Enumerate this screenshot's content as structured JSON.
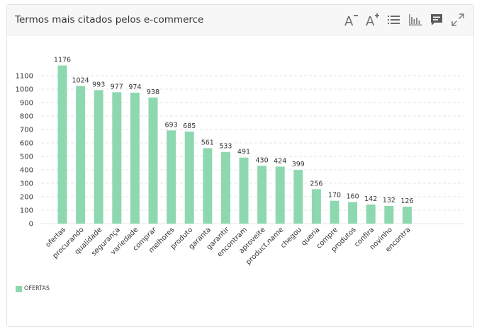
{
  "panel": {
    "title": "Termos mais citados pelos e-commerce"
  },
  "toolbar": {
    "icons": [
      "font-decrease-icon",
      "font-increase-icon",
      "list-icon",
      "bar-chart-icon",
      "comment-icon",
      "expand-icon"
    ]
  },
  "colors": {
    "bar": "#8ed8b0",
    "grid": "#e6e6e6",
    "text": "#333333"
  },
  "legend": {
    "label": "OFERTAS"
  },
  "chart_data": {
    "type": "bar",
    "title": "Termos mais citados pelos e-commerce",
    "xlabel": "",
    "ylabel": "",
    "ylim": [
      0,
      1200
    ],
    "yticks": [
      0,
      100,
      200,
      300,
      400,
      500,
      600,
      700,
      800,
      900,
      1000,
      1100
    ],
    "grid": true,
    "legend_position": "bottom-left",
    "categories": [
      "ofertas",
      "procurando",
      "qualidade",
      "segurança",
      "variedade",
      "comprar",
      "melhores",
      "produto",
      "garanta",
      "garantir",
      "encontram",
      "aproveite",
      "product.name",
      "chegou",
      "queria",
      "compre",
      "produtos",
      "confira",
      "novinho",
      "encontra"
    ],
    "series": [
      {
        "name": "OFERTAS",
        "values": [
          1176,
          1024,
          993,
          977,
          974,
          938,
          693,
          685,
          561,
          533,
          491,
          430,
          424,
          399,
          256,
          170,
          160,
          142,
          132,
          126
        ]
      }
    ]
  }
}
